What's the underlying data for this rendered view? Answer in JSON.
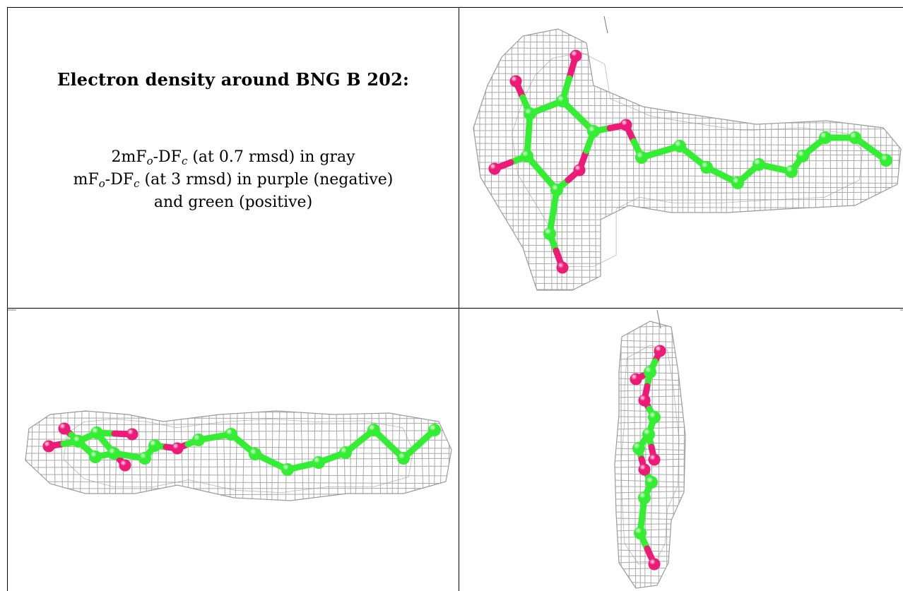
{
  "caption": {
    "title": "Electron density around BNG B 202:",
    "line1": {
      "pre": "2mF",
      "sub1": "o",
      "mid": "-DF",
      "sub2": "c",
      "post": " (at 0.7 rmsd) in gray"
    },
    "line2": {
      "pre": "mF",
      "sub1": "o",
      "mid": "-DF",
      "sub2": "c",
      "post": " (at 3 rmsd) in purple (negative)"
    },
    "line3": "and green (positive)"
  },
  "colors": {
    "carbon": "#33ee33",
    "oxygen": "#ee1a77",
    "mesh": "#9a9a9a",
    "border": "#000000"
  },
  "views": [
    {
      "name": "top-view",
      "orientation": "front"
    },
    {
      "name": "side-view",
      "orientation": "side"
    },
    {
      "name": "end-view",
      "orientation": "end-on"
    }
  ]
}
